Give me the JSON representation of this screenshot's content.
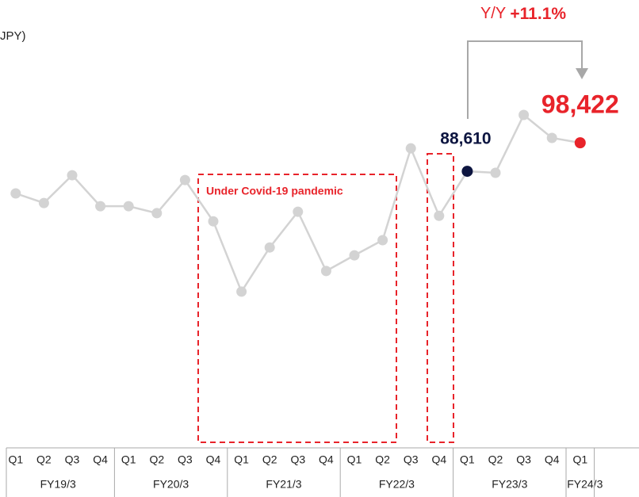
{
  "chart_data": {
    "type": "line",
    "unit_label": "JPY)",
    "annotation": "Under Covid-19 pandemic",
    "yoy": {
      "prefix": "Y/Y",
      "value": "+11.1%"
    },
    "groups": [
      {
        "name": "FY19/3",
        "categories": [
          "Q1",
          "Q2",
          "Q3",
          "Q4"
        ]
      },
      {
        "name": "FY20/3",
        "categories": [
          "Q1",
          "Q2",
          "Q3",
          "Q4"
        ]
      },
      {
        "name": "FY21/3",
        "categories": [
          "Q1",
          "Q2",
          "Q3",
          "Q4"
        ]
      },
      {
        "name": "FY22/3",
        "categories": [
          "Q1",
          "Q2",
          "Q3",
          "Q4"
        ]
      },
      {
        "name": "FY23/3",
        "categories": [
          "Q1",
          "Q2",
          "Q3",
          "Q4"
        ]
      },
      {
        "name": "FY24/3",
        "categories": [
          "Q1"
        ]
      }
    ],
    "color": "#d3d3d3",
    "values": [
      81000,
      77700,
      87250,
      76600,
      76600,
      74200,
      85600,
      71400,
      47200,
      62400,
      74700,
      54300,
      59700,
      64900,
      96500,
      73300,
      88610,
      88100,
      108000,
      100100,
      98422
    ],
    "value_labels": [
      null,
      null,
      null,
      null,
      null,
      null,
      null,
      null,
      null,
      null,
      null,
      null,
      null,
      null,
      null,
      null,
      "88,610",
      null,
      null,
      null,
      "98,422"
    ],
    "point_colors": [
      null,
      null,
      null,
      null,
      null,
      null,
      null,
      null,
      null,
      null,
      null,
      null,
      null,
      null,
      null,
      null,
      "#0d1540",
      null,
      null,
      null,
      "#e8232a"
    ],
    "ylim": [
      0,
      120000
    ]
  }
}
